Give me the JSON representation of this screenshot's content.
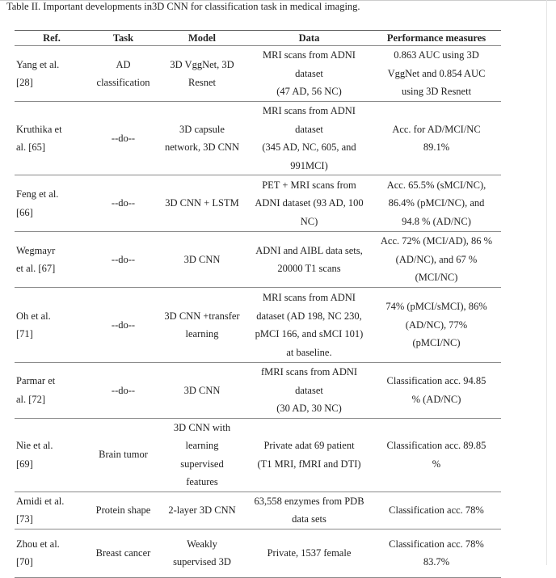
{
  "caption": "Table II. Important developments in3D CNN for classification task in medical imaging.",
  "headers": [
    "Ref.",
    "Task",
    "Model",
    "Data",
    "Performance measures"
  ],
  "rows": [
    {
      "ref": [
        "Yang et al.",
        "[28]"
      ],
      "task": [
        "AD",
        "classification"
      ],
      "model": [
        "3D VggNet, 3D",
        "Resnet"
      ],
      "data": [
        "MRI scans from ADNI",
        "dataset",
        "(47 AD, 56 NC)"
      ],
      "perf": [
        "0.863 AUC using 3D",
        "VggNet and 0.854 AUC",
        "using 3D Resnett"
      ]
    },
    {
      "ref": [
        "Kruthika et",
        "al. [65]"
      ],
      "task": [
        "--do--"
      ],
      "model": [
        "3D capsule",
        "network, 3D CNN"
      ],
      "data": [
        "MRI scans from ADNI",
        "dataset",
        "(345 AD, NC, 605, and",
        "991MCI)"
      ],
      "perf": [
        "Acc. for AD/MCI/NC",
        "89.1%"
      ]
    },
    {
      "ref": [
        "Feng et al.",
        "[66]"
      ],
      "task": [
        "--do--"
      ],
      "model": [
        "3D CNN + LSTM"
      ],
      "data": [
        "PET + MRI scans from",
        "ADNI dataset (93 AD, 100",
        "NC)"
      ],
      "perf": [
        "Acc. 65.5% (sMCI/NC),",
        "86.4% (pMCI/NC), and",
        "94.8 % (AD/NC)"
      ]
    },
    {
      "ref": [
        "Wegmayr",
        "et al. [67]"
      ],
      "task": [
        "--do--"
      ],
      "model": [
        "3D CNN"
      ],
      "data": [
        "ADNI and AIBL data sets,",
        "20000 T1 scans"
      ],
      "perf": [
        "Acc. 72% (MCI/AD), 86 %",
        "(AD/NC), and 67 %",
        "(MCI/NC)"
      ]
    },
    {
      "ref": [
        "Oh et al.",
        "[71]"
      ],
      "task": [
        "--do--"
      ],
      "model": [
        "3D CNN +transfer",
        "learning"
      ],
      "data": [
        "MRI scans from ADNI",
        "dataset (AD 198, NC 230,",
        "pMCI 166, and sMCI 101)",
        "at baseline."
      ],
      "perf": [
        "74% (pMCI/sMCI), 86%",
        "(AD/NC), 77%",
        "(pMCI/NC)"
      ]
    },
    {
      "ref": [
        "Parmar et",
        "al. [72]"
      ],
      "task": [
        "--do--"
      ],
      "model": [
        "3D CNN"
      ],
      "data": [
        "fMRI scans from ADNI",
        "dataset",
        "(30 AD, 30 NC)"
      ],
      "perf": [
        "Classification acc. 94.85",
        "% (AD/NC)"
      ]
    },
    {
      "ref": [
        "Nie et al.",
        "[69]"
      ],
      "task": [
        "Brain tumor"
      ],
      "model": [
        "3D CNN with",
        "learning",
        "supervised",
        "features"
      ],
      "data": [
        "Private adat  69 patient",
        "(T1 MRI, fMRI and DTI)"
      ],
      "perf": [
        "Classification acc. 89.85",
        "%"
      ]
    },
    {
      "ref": [
        "Amidi et al.",
        "[73]"
      ],
      "task": [
        "Protein shape"
      ],
      "model": [
        "2-layer 3D CNN"
      ],
      "data": [
        "63,558 enzymes from PDB",
        "data sets"
      ],
      "perf": [
        "Classification acc. 78%"
      ]
    },
    {
      "ref": [
        "Zhou  et  al.",
        "[70]"
      ],
      "task": [
        "Breast cancer"
      ],
      "model": [
        "Weakly",
        "supervised 3D"
      ],
      "data": [
        "Private, 1537 female"
      ],
      "perf": [
        "Classification acc. 78%",
        "83.7%"
      ]
    }
  ]
}
